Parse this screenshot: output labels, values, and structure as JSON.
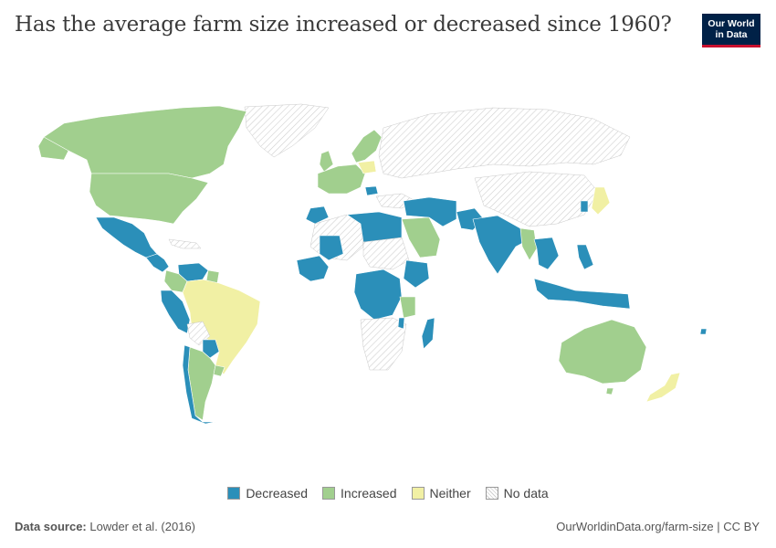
{
  "header": {
    "title": "Has the average farm size increased or decreased since 1960?",
    "logo_line1": "Our World",
    "logo_line2": "in Data"
  },
  "legend": {
    "items": [
      {
        "label": "Decreased",
        "color": "#2b8fb9"
      },
      {
        "label": "Increased",
        "color": "#a1cf8e"
      },
      {
        "label": "Neither",
        "color": "#f1f0a4"
      },
      {
        "label": "No data",
        "color": "hatched"
      }
    ]
  },
  "footer": {
    "source_label": "Data source:",
    "source_value": "Lowder et al. (2016)",
    "url": "OurWorldinData.org/farm-size | CC BY"
  },
  "colors": {
    "decreased": "#2b8fb9",
    "increased": "#a1cf8e",
    "neither": "#f1f0a4",
    "logo_bg": "#002147",
    "logo_accent": "#c8102e"
  }
}
